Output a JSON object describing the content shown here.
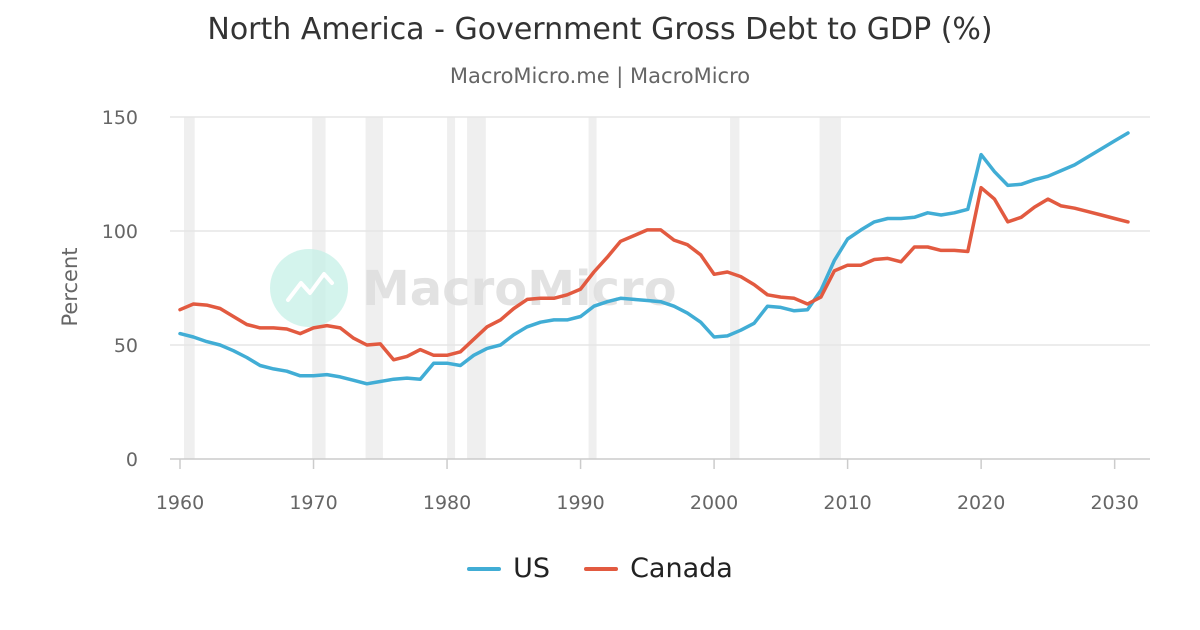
{
  "title": "North America - Government Gross Debt to GDP (%)",
  "subtitle": "MacroMicro.me | MacroMicro",
  "watermark": "MacroMicro",
  "colors": {
    "us": "#41add5",
    "canada": "#e25a40",
    "recession_band": "#efefef",
    "grid": "#e6e6e6",
    "axis_text": "#666666"
  },
  "chart_data": {
    "type": "line",
    "title": "North America - Government Gross Debt to GDP (%)",
    "subtitle": "MacroMicro.me | MacroMicro",
    "xlabel": "",
    "ylabel": "Percent",
    "xlim": [
      1960,
      2031
    ],
    "ylim": [
      0,
      150
    ],
    "x_ticks": [
      1960,
      1970,
      1980,
      1990,
      2000,
      2010,
      2020,
      2030
    ],
    "y_ticks": [
      0,
      50,
      100,
      150
    ],
    "grid": true,
    "legend_position": "bottom-center",
    "recession_periods": [
      [
        1960.3,
        1961.1
      ],
      [
        1969.9,
        1970.9
      ],
      [
        1973.9,
        1975.2
      ],
      [
        1980.0,
        1980.6
      ],
      [
        1981.5,
        1982.9
      ],
      [
        1990.6,
        1991.2
      ],
      [
        2001.2,
        2001.9
      ],
      [
        2007.9,
        2009.5
      ]
    ],
    "years": [
      1960,
      1961,
      1962,
      1963,
      1964,
      1965,
      1966,
      1967,
      1968,
      1969,
      1970,
      1971,
      1972,
      1973,
      1974,
      1975,
      1976,
      1977,
      1978,
      1979,
      1980,
      1981,
      1982,
      1983,
      1984,
      1985,
      1986,
      1987,
      1988,
      1989,
      1990,
      1991,
      1992,
      1993,
      1994,
      1995,
      1996,
      1997,
      1998,
      1999,
      2000,
      2001,
      2002,
      2003,
      2004,
      2005,
      2006,
      2007,
      2008,
      2009,
      2010,
      2011,
      2012,
      2013,
      2014,
      2015,
      2016,
      2017,
      2018,
      2019,
      2020,
      2021,
      2022,
      2023,
      2024,
      2025,
      2026,
      2027,
      2028,
      2029,
      2030,
      2031
    ],
    "series": [
      {
        "name": "US",
        "values": [
          55,
          53.5,
          51.5,
          50,
          47.5,
          44.5,
          41,
          39.5,
          38.5,
          36.5,
          36.5,
          37,
          36,
          34.5,
          33,
          34,
          35,
          35.5,
          35,
          42,
          42,
          41,
          45.5,
          48.5,
          50,
          54.5,
          58,
          60,
          61,
          61,
          62.5,
          67,
          69,
          70.5,
          70,
          69.5,
          69,
          67,
          64,
          60,
          53.5,
          54,
          56.5,
          59.5,
          67,
          66.5,
          65,
          65.5,
          74,
          87,
          96.5,
          100.5,
          104,
          105.5,
          105.5,
          106,
          108,
          107,
          108,
          109.5,
          133.5,
          126,
          120,
          120.5,
          122.5,
          124,
          126.5,
          129,
          132.5,
          136,
          139.5,
          143
        ]
      },
      {
        "name": "Canada",
        "values": [
          65.5,
          68,
          67.5,
          66,
          62.5,
          59,
          57.5,
          57.5,
          57,
          55,
          57.5,
          58.5,
          57.5,
          53,
          50,
          50.5,
          43.5,
          45,
          48,
          45.5,
          45.5,
          47,
          52.5,
          58,
          61,
          66,
          70,
          70.5,
          70.5,
          72,
          74.5,
          82,
          88.5,
          95.5,
          98,
          100.5,
          100.5,
          96,
          94,
          89.5,
          81,
          82,
          80,
          76.5,
          72,
          71,
          70.5,
          68,
          71,
          82.5,
          85,
          85,
          87.5,
          88,
          86.5,
          93,
          93,
          91.5,
          91.5,
          91,
          119,
          114,
          104,
          106,
          110.5,
          114,
          111,
          110,
          108.5,
          107,
          105.5,
          104
        ]
      }
    ]
  }
}
